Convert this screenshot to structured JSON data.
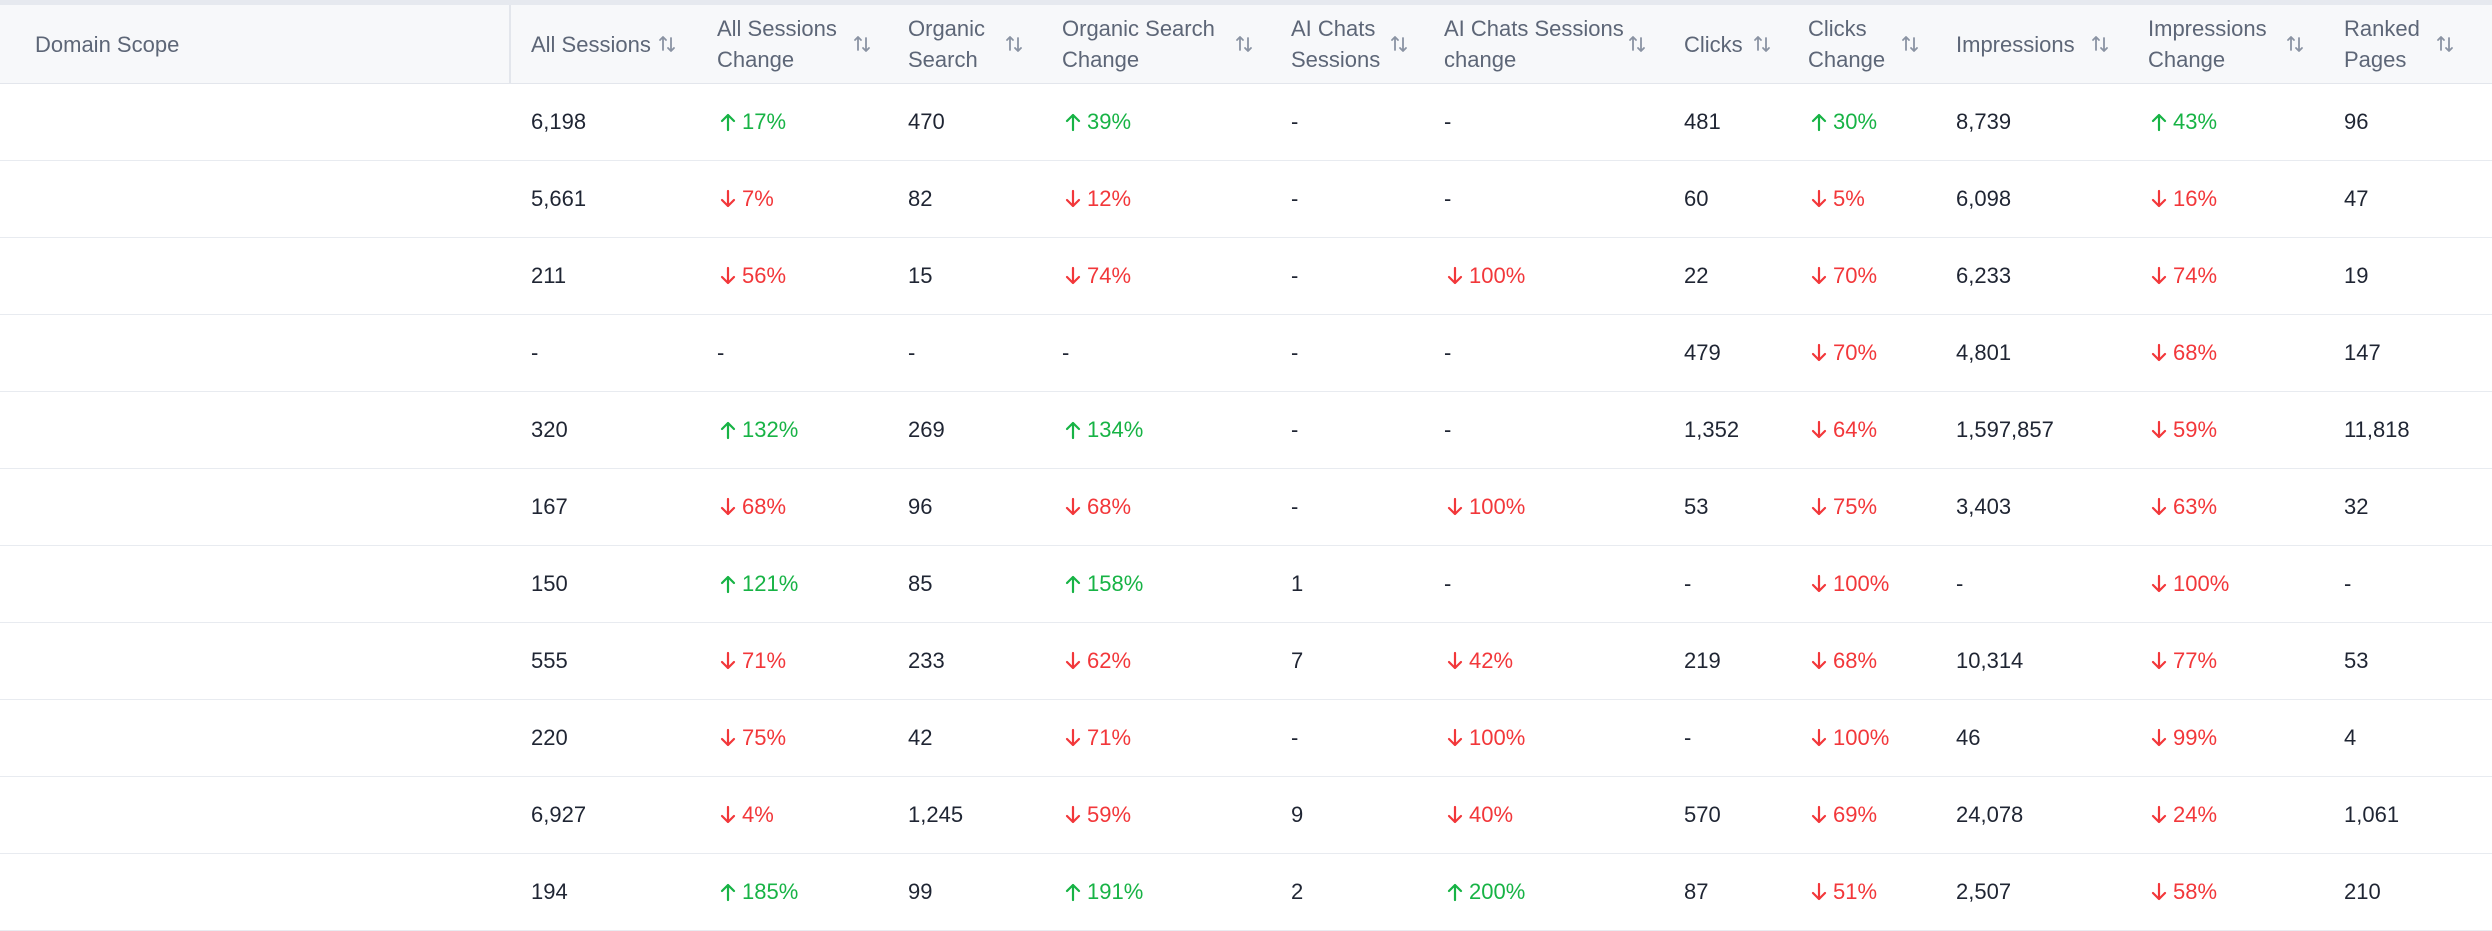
{
  "columns": [
    {
      "label": "Domain Scope"
    },
    {
      "label": "All Sessions"
    },
    {
      "label": "All Sessions Change"
    },
    {
      "label": "Organic Search"
    },
    {
      "label": "Organic Search Change"
    },
    {
      "label": "AI Chats Sessions"
    },
    {
      "label": "AI Chats Sessions change"
    },
    {
      "label": "Clicks"
    },
    {
      "label": "Clicks Change"
    },
    {
      "label": "Impressions"
    },
    {
      "label": "Impressions Change"
    },
    {
      "label": "Ranked Pages"
    }
  ],
  "rows": [
    [
      "",
      "6,198",
      {
        "dir": "up",
        "text": "17%"
      },
      "470",
      {
        "dir": "up",
        "text": "39%"
      },
      "-",
      "-",
      "481",
      {
        "dir": "up",
        "text": "30%"
      },
      "8,739",
      {
        "dir": "up",
        "text": "43%"
      },
      "96"
    ],
    [
      "",
      "5,661",
      {
        "dir": "down",
        "text": "7%"
      },
      "82",
      {
        "dir": "down",
        "text": "12%"
      },
      "-",
      "-",
      "60",
      {
        "dir": "down",
        "text": "5%"
      },
      "6,098",
      {
        "dir": "down",
        "text": "16%"
      },
      "47"
    ],
    [
      "",
      "211",
      {
        "dir": "down",
        "text": "56%"
      },
      "15",
      {
        "dir": "down",
        "text": "74%"
      },
      "-",
      {
        "dir": "down",
        "text": "100%"
      },
      "22",
      {
        "dir": "down",
        "text": "70%"
      },
      "6,233",
      {
        "dir": "down",
        "text": "74%"
      },
      "19"
    ],
    [
      "",
      "-",
      "-",
      "-",
      "-",
      "-",
      "-",
      "479",
      {
        "dir": "down",
        "text": "70%"
      },
      "4,801",
      {
        "dir": "down",
        "text": "68%"
      },
      "147"
    ],
    [
      "",
      "320",
      {
        "dir": "up",
        "text": "132%"
      },
      "269",
      {
        "dir": "up",
        "text": "134%"
      },
      "-",
      "-",
      "1,352",
      {
        "dir": "down",
        "text": "64%"
      },
      "1,597,857",
      {
        "dir": "down",
        "text": "59%"
      },
      "11,818"
    ],
    [
      "",
      "167",
      {
        "dir": "down",
        "text": "68%"
      },
      "96",
      {
        "dir": "down",
        "text": "68%"
      },
      "-",
      {
        "dir": "down",
        "text": "100%"
      },
      "53",
      {
        "dir": "down",
        "text": "75%"
      },
      "3,403",
      {
        "dir": "down",
        "text": "63%"
      },
      "32"
    ],
    [
      "",
      "150",
      {
        "dir": "up",
        "text": "121%"
      },
      "85",
      {
        "dir": "up",
        "text": "158%"
      },
      "1",
      "-",
      "-",
      {
        "dir": "down",
        "text": "100%"
      },
      "-",
      {
        "dir": "down",
        "text": "100%"
      },
      "-"
    ],
    [
      "",
      "555",
      {
        "dir": "down",
        "text": "71%"
      },
      "233",
      {
        "dir": "down",
        "text": "62%"
      },
      "7",
      {
        "dir": "down",
        "text": "42%"
      },
      "219",
      {
        "dir": "down",
        "text": "68%"
      },
      "10,314",
      {
        "dir": "down",
        "text": "77%"
      },
      "53"
    ],
    [
      "",
      "220",
      {
        "dir": "down",
        "text": "75%"
      },
      "42",
      {
        "dir": "down",
        "text": "71%"
      },
      "-",
      {
        "dir": "down",
        "text": "100%"
      },
      "-",
      {
        "dir": "down",
        "text": "100%"
      },
      "46",
      {
        "dir": "down",
        "text": "99%"
      },
      "4"
    ],
    [
      "",
      "6,927",
      {
        "dir": "down",
        "text": "4%"
      },
      "1,245",
      {
        "dir": "down",
        "text": "59%"
      },
      "9",
      {
        "dir": "down",
        "text": "40%"
      },
      "570",
      {
        "dir": "down",
        "text": "69%"
      },
      "24,078",
      {
        "dir": "down",
        "text": "24%"
      },
      "1,061"
    ],
    [
      "",
      "194",
      {
        "dir": "up",
        "text": "185%"
      },
      "99",
      {
        "dir": "up",
        "text": "191%"
      },
      "2",
      {
        "dir": "up",
        "text": "200%"
      },
      "87",
      {
        "dir": "down",
        "text": "51%"
      },
      "2,507",
      {
        "dir": "down",
        "text": "58%"
      },
      "210"
    ]
  ],
  "colors": {
    "up": "#17b345",
    "down": "#f2373a",
    "header_bg": "#f7f8fa",
    "header_text": "#5d6677"
  },
  "icons": {
    "sort": "sort-arrows-icon",
    "up": "arrow-up-icon",
    "down": "arrow-down-icon"
  }
}
